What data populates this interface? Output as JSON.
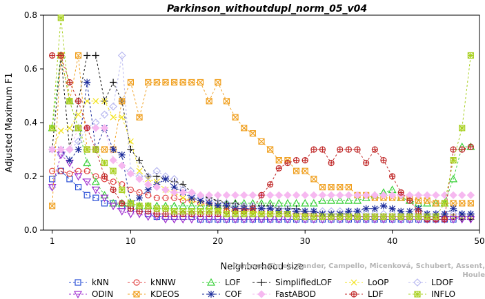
{
  "chart_data": {
    "type": "line",
    "title": "Parkinson_withoutdupl_norm_05_v04",
    "xlabel": "Neighborhood size",
    "ylabel": "Adjusted Maximum F1",
    "xlim": [
      0,
      50
    ],
    "ylim": [
      0,
      0.8
    ],
    "xticks": [
      1,
      10,
      20,
      30,
      40,
      50
    ],
    "yticks": [
      0.0,
      0.2,
      0.4,
      0.6,
      0.8
    ],
    "grid": false,
    "legend_position": "bottom",
    "x": [
      1,
      2,
      3,
      4,
      5,
      6,
      7,
      8,
      9,
      10,
      11,
      12,
      13,
      14,
      15,
      16,
      17,
      18,
      19,
      20,
      21,
      22,
      23,
      24,
      25,
      26,
      27,
      28,
      29,
      30,
      31,
      32,
      33,
      34,
      35,
      36,
      37,
      38,
      39,
      40,
      41,
      42,
      43,
      44,
      45,
      46,
      47,
      48,
      49
    ],
    "series": [
      {
        "name": "kNN",
        "color": "#2a4fd6",
        "marker": "square",
        "values": [
          0.19,
          0.22,
          0.19,
          0.16,
          0.13,
          0.12,
          0.1,
          0.1,
          0.09,
          0.08,
          0.08,
          0.06,
          0.05,
          0.05,
          0.05,
          0.05,
          0.05,
          0.04,
          0.04,
          0.04,
          0.04,
          0.04,
          0.04,
          0.04,
          0.04,
          0.04,
          0.04,
          0.04,
          0.04,
          0.04,
          0.04,
          0.04,
          0.04,
          0.04,
          0.04,
          0.04,
          0.04,
          0.04,
          0.04,
          0.04,
          0.04,
          0.04,
          0.04,
          0.04,
          0.04,
          0.04,
          0.04,
          0.05,
          0.05
        ]
      },
      {
        "name": "kNNW",
        "color": "#e04040",
        "marker": "circle",
        "values": [
          0.22,
          0.22,
          0.21,
          0.22,
          0.22,
          0.2,
          0.19,
          0.18,
          0.17,
          0.15,
          0.14,
          0.13,
          0.12,
          0.12,
          0.12,
          0.11,
          0.11,
          0.1,
          0.1,
          0.09,
          0.09,
          0.08,
          0.08,
          0.07,
          0.07,
          0.07,
          0.07,
          0.06,
          0.06,
          0.06,
          0.06,
          0.05,
          0.05,
          0.05,
          0.05,
          0.05,
          0.05,
          0.05,
          0.05,
          0.05,
          0.05,
          0.05,
          0.05,
          0.05,
          0.05,
          0.05,
          0.05,
          0.05,
          0.05
        ]
      },
      {
        "name": "LOF",
        "color": "#39d039",
        "marker": "triangle",
        "values": [
          0.38,
          0.65,
          0.48,
          0.38,
          0.25,
          0.18,
          0.13,
          0.1,
          0.1,
          0.1,
          0.09,
          0.09,
          0.09,
          0.09,
          0.09,
          0.09,
          0.09,
          0.09,
          0.09,
          0.09,
          0.1,
          0.1,
          0.1,
          0.1,
          0.1,
          0.1,
          0.1,
          0.1,
          0.1,
          0.1,
          0.1,
          0.11,
          0.11,
          0.11,
          0.11,
          0.11,
          0.12,
          0.13,
          0.14,
          0.15,
          0.12,
          0.11,
          0.1,
          0.1,
          0.1,
          0.1,
          0.19,
          0.31,
          0.31
        ]
      },
      {
        "name": "SimplifiedLOF",
        "color": "#111111",
        "marker": "plus",
        "values": [
          0.3,
          0.65,
          0.3,
          0.48,
          0.65,
          0.65,
          0.48,
          0.55,
          0.48,
          0.3,
          0.26,
          0.2,
          0.2,
          0.19,
          0.18,
          0.17,
          0.14,
          0.13,
          0.12,
          0.11,
          0.1,
          0.1,
          0.09,
          0.09,
          0.09,
          0.09,
          0.08,
          0.08,
          0.08,
          0.07,
          0.07,
          0.06,
          0.06,
          0.06,
          0.06,
          0.05,
          0.05,
          0.05,
          0.05,
          0.05,
          0.05,
          0.05,
          0.05,
          0.05,
          0.05,
          0.05,
          0.05,
          0.04,
          0.04
        ]
      },
      {
        "name": "LoOP",
        "color": "#f2e21a",
        "marker": "x",
        "values": [
          0.3,
          0.37,
          0.38,
          0.43,
          0.48,
          0.48,
          0.48,
          0.42,
          0.42,
          0.33,
          0.22,
          0.19,
          0.18,
          0.15,
          0.14,
          0.12,
          0.11,
          0.1,
          0.09,
          0.08,
          0.08,
          0.07,
          0.07,
          0.07,
          0.06,
          0.06,
          0.06,
          0.06,
          0.06,
          0.06,
          0.05,
          0.05,
          0.05,
          0.05,
          0.05,
          0.05,
          0.05,
          0.05,
          0.05,
          0.05,
          0.05,
          0.05,
          0.05,
          0.05,
          0.05,
          0.05,
          0.05,
          0.05,
          0.05
        ]
      },
      {
        "name": "LDOF",
        "color": "#b8b8f0",
        "marker": "diamond",
        "values": [
          0.16,
          0.28,
          0.3,
          0.33,
          0.38,
          0.4,
          0.43,
          0.46,
          0.65,
          0.22,
          0.2,
          0.2,
          0.22,
          0.2,
          0.19,
          0.15,
          0.13,
          0.12,
          0.11,
          0.1,
          0.1,
          0.09,
          0.09,
          0.09,
          0.08,
          0.08,
          0.08,
          0.08,
          0.07,
          0.07,
          0.07,
          0.07,
          0.07,
          0.07,
          0.07,
          0.07,
          0.06,
          0.06,
          0.06,
          0.06,
          0.06,
          0.06,
          0.06,
          0.06,
          0.06,
          0.06,
          0.06,
          0.06,
          0.06
        ]
      },
      {
        "name": "ODIN",
        "color": "#a030d0",
        "marker": "triangle-down",
        "values": [
          0.16,
          0.28,
          0.25,
          0.2,
          0.18,
          0.15,
          0.12,
          0.09,
          0.07,
          0.06,
          0.06,
          0.05,
          0.05,
          0.04,
          0.04,
          0.04,
          0.04,
          0.04,
          0.04,
          0.04,
          0.04,
          0.04,
          0.04,
          0.04,
          0.04,
          0.04,
          0.04,
          0.04,
          0.04,
          0.04,
          0.04,
          0.04,
          0.04,
          0.04,
          0.04,
          0.04,
          0.04,
          0.04,
          0.04,
          0.04,
          0.04,
          0.04,
          0.04,
          0.04,
          0.04,
          0.04,
          0.04,
          0.04,
          0.04
        ]
      },
      {
        "name": "KDEOS",
        "color": "#f0a020",
        "marker": "square-x",
        "values": [
          0.09,
          0.65,
          0.48,
          0.65,
          0.3,
          0.3,
          0.3,
          0.3,
          0.48,
          0.55,
          0.42,
          0.55,
          0.55,
          0.55,
          0.55,
          0.55,
          0.55,
          0.55,
          0.48,
          0.55,
          0.48,
          0.42,
          0.38,
          0.36,
          0.33,
          0.3,
          0.26,
          0.26,
          0.22,
          0.22,
          0.19,
          0.16,
          0.16,
          0.16,
          0.16,
          0.13,
          0.13,
          0.12,
          0.12,
          0.12,
          0.12,
          0.12,
          0.11,
          0.11,
          0.1,
          0.1,
          0.1,
          0.1,
          0.1
        ]
      },
      {
        "name": "COF",
        "color": "#1a2a9a",
        "marker": "asterisk",
        "values": [
          0.3,
          0.3,
          0.26,
          0.3,
          0.55,
          0.3,
          0.38,
          0.3,
          0.28,
          0.1,
          0.12,
          0.15,
          0.17,
          0.19,
          0.16,
          0.14,
          0.12,
          0.11,
          0.1,
          0.09,
          0.09,
          0.08,
          0.08,
          0.08,
          0.08,
          0.08,
          0.07,
          0.07,
          0.07,
          0.07,
          0.07,
          0.06,
          0.06,
          0.06,
          0.07,
          0.07,
          0.08,
          0.08,
          0.09,
          0.08,
          0.07,
          0.07,
          0.08,
          0.06,
          0.06,
          0.06,
          0.08,
          0.06,
          0.06
        ]
      },
      {
        "name": "FastABOD",
        "color": "#f6b8f0",
        "marker": "diamond-filled",
        "values": [
          0.3,
          0.3,
          0.3,
          0.38,
          0.38,
          0.38,
          0.38,
          0.26,
          0.24,
          0.21,
          0.19,
          0.17,
          0.16,
          0.15,
          0.14,
          0.14,
          0.14,
          0.13,
          0.13,
          0.13,
          0.13,
          0.13,
          0.13,
          0.13,
          0.13,
          0.13,
          0.13,
          0.13,
          0.13,
          0.13,
          0.13,
          0.13,
          0.13,
          0.13,
          0.13,
          0.13,
          0.13,
          0.13,
          0.13,
          0.13,
          0.13,
          0.13,
          0.13,
          0.13,
          0.13,
          0.13,
          0.13,
          0.13,
          0.13
        ]
      },
      {
        "name": "LDF",
        "color": "#c02828",
        "marker": "circle-plus",
        "values": [
          0.65,
          0.65,
          0.55,
          0.48,
          0.38,
          0.3,
          0.2,
          0.15,
          0.1,
          0.08,
          0.07,
          0.07,
          0.06,
          0.06,
          0.06,
          0.06,
          0.06,
          0.06,
          0.06,
          0.06,
          0.07,
          0.07,
          0.07,
          0.08,
          0.13,
          0.17,
          0.23,
          0.25,
          0.26,
          0.26,
          0.3,
          0.3,
          0.25,
          0.3,
          0.3,
          0.3,
          0.25,
          0.3,
          0.26,
          0.2,
          0.14,
          0.11,
          0.07,
          0.04,
          0.04,
          0.04,
          0.3,
          0.3,
          0.31
        ]
      },
      {
        "name": "INFLO",
        "color": "#a8d020",
        "marker": "star-square",
        "values": [
          0.38,
          0.79,
          0.48,
          0.38,
          0.3,
          0.3,
          0.25,
          0.22,
          0.15,
          0.1,
          0.09,
          0.09,
          0.08,
          0.08,
          0.07,
          0.07,
          0.07,
          0.07,
          0.07,
          0.07,
          0.06,
          0.06,
          0.06,
          0.06,
          0.06,
          0.06,
          0.06,
          0.06,
          0.05,
          0.05,
          0.05,
          0.05,
          0.05,
          0.05,
          0.05,
          0.05,
          0.05,
          0.05,
          0.05,
          0.05,
          0.05,
          0.05,
          0.05,
          0.05,
          0.05,
          0.1,
          0.26,
          0.38,
          0.65
        ]
      }
    ],
    "legend_columns": 6,
    "credit": "Campos, Zimek, Sander, Campello, Micenková, Schubert, Assent, Houle"
  }
}
